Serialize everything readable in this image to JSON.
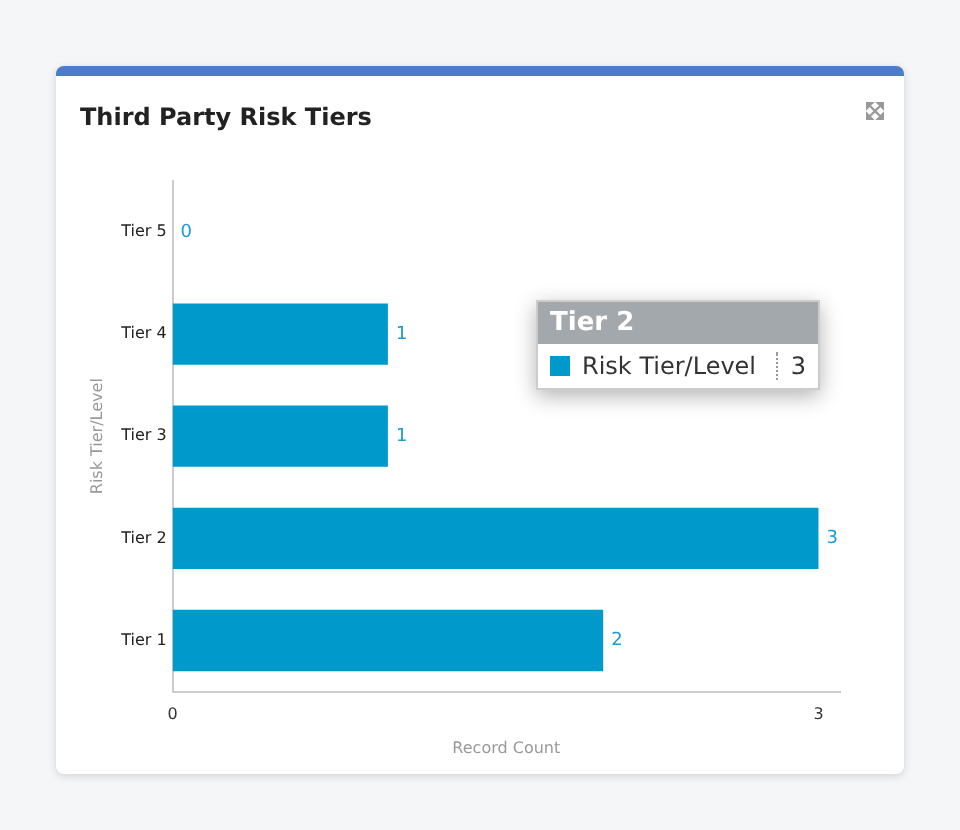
{
  "chart_data": {
    "type": "bar",
    "orientation": "horizontal",
    "title": "Third Party Risk Tiers",
    "xlabel": "Record Count",
    "ylabel": "Risk Tier/Level",
    "categories": [
      "Tier 5",
      "Tier 4",
      "Tier 3",
      "Tier 2",
      "Tier 1"
    ],
    "values": [
      0,
      1,
      1,
      3,
      2
    ],
    "color": "#0099cc",
    "xlim": [
      0,
      3.1
    ],
    "xticks": [
      0,
      3
    ],
    "data_labels": true,
    "annotations": [
      "Tier 2",
      "Risk Tier/Level",
      "3"
    ]
  }
}
